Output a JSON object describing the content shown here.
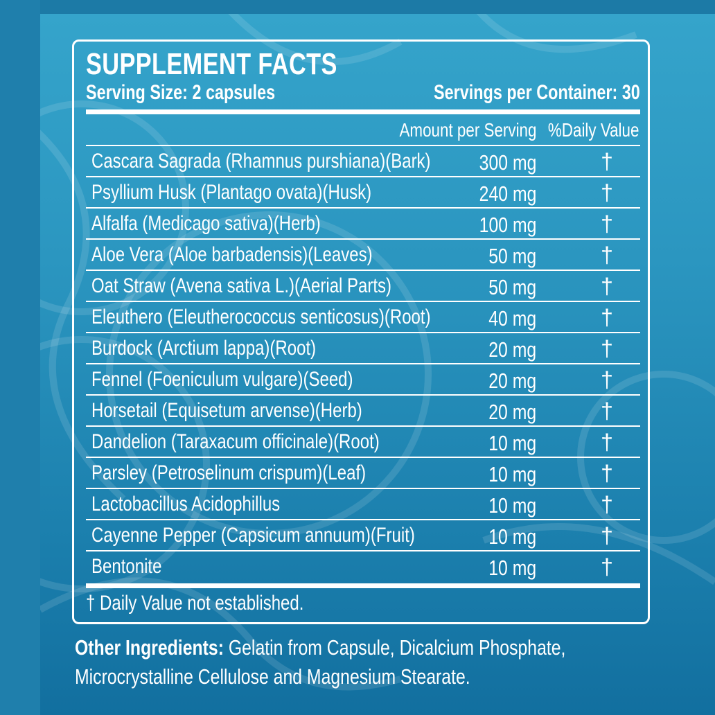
{
  "panel": {
    "title": "SUPPLEMENT FACTS",
    "serving_size": "Serving Size: 2 capsules",
    "servings_per_container": "Servings per Container: 30",
    "column_headers": {
      "amount": "Amount per Serving",
      "daily_value": "%Daily Value"
    },
    "ingredients": [
      {
        "name": "Cascara Sagrada (Rhamnus purshiana)(Bark)",
        "amount": "300 mg",
        "dv": "†"
      },
      {
        "name": "Psyllium Husk (Plantago ovata)(Husk)",
        "amount": "240 mg",
        "dv": "†"
      },
      {
        "name": "Alfalfa (Medicago sativa)(Herb)",
        "amount": "100 mg",
        "dv": "†"
      },
      {
        "name": "Aloe Vera (Aloe barbadensis)(Leaves)",
        "amount": "50 mg",
        "dv": "†"
      },
      {
        "name": "Oat Straw (Avena sativa L.)(Aerial Parts)",
        "amount": "50 mg",
        "dv": "†"
      },
      {
        "name": "Eleuthero (Eleutherococcus senticosus)(Root)",
        "amount": "40 mg",
        "dv": "†"
      },
      {
        "name": "Burdock (Arctium lappa)(Root)",
        "amount": "20 mg",
        "dv": "†"
      },
      {
        "name": "Fennel (Foeniculum vulgare)(Seed)",
        "amount": "20 mg",
        "dv": "†"
      },
      {
        "name": "Horsetail (Equisetum arvense)(Herb)",
        "amount": "20 mg",
        "dv": "†"
      },
      {
        "name": "Dandelion (Taraxacum officinale)(Root)",
        "amount": "10 mg",
        "dv": "†"
      },
      {
        "name": "Parsley (Petroselinum crispum)(Leaf)",
        "amount": "10 mg",
        "dv": "†"
      },
      {
        "name": "Lactobacillus Acidophillus",
        "amount": "10 mg",
        "dv": "†"
      },
      {
        "name": "Cayenne Pepper (Capsicum annuum)(Fruit)",
        "amount": "10 mg",
        "dv": "†"
      },
      {
        "name": "Bentonite",
        "amount": "10 mg",
        "dv": "†"
      }
    ],
    "footnote": "† Daily Value not established."
  },
  "other_ingredients": {
    "label": "Other Ingredients:",
    "text": " Gelatin from Capsule, Dicalcium Phosphate, Microcrystalline Cellulose and Magnesium Stearate."
  }
}
